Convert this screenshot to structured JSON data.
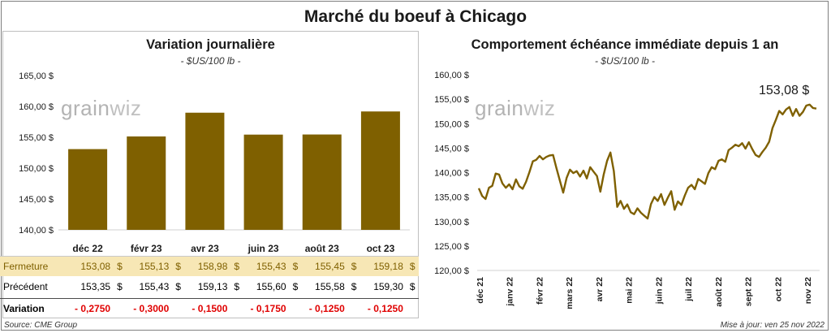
{
  "main_title": "Marché du boeuf à Chicago",
  "left": {
    "title": "Variation  journalière",
    "unit": "- $US/100 lb -",
    "watermark": "grainwiz"
  },
  "right": {
    "title": "Comportement  échéance immédiate depuis 1 an",
    "unit": "- $US/100 lb -",
    "watermark": "grainwiz",
    "last_value_label": "153,08 $"
  },
  "table": {
    "rows": [
      {
        "label": "Fermeture",
        "values": [
          "153,08",
          "155,13",
          "158,98",
          "155,43",
          "155,45",
          "159,18"
        ],
        "currency": "$"
      },
      {
        "label": "Précédent",
        "values": [
          "153,35",
          "155,43",
          "159,13",
          "155,60",
          "155,58",
          "159,30"
        ],
        "currency": "$"
      },
      {
        "label": "Variation",
        "values": [
          "- 0,2750",
          "- 0,3000",
          "- 0,1500",
          "- 0,1750",
          "- 0,1250",
          "- 0,1250"
        ],
        "currency": ""
      }
    ]
  },
  "footer": {
    "source": "Source: CME Group",
    "updated": "Mise à jour: ven 25 nov 2022"
  },
  "colors": {
    "bar": "#7f6000",
    "line": "#7f6000",
    "fermeture_bg": "#f7e7b5",
    "variation_text": "#e00000"
  },
  "chart_data": [
    {
      "type": "bar",
      "title": "Variation  journalière",
      "subtitle": "- $US/100 lb -",
      "categories": [
        "déc 22",
        "févr 23",
        "avr 23",
        "juin 23",
        "août 23",
        "oct 23"
      ],
      "values": [
        153.08,
        155.13,
        158.98,
        155.43,
        155.45,
        159.18
      ],
      "ylim": [
        140,
        165
      ],
      "yticks": [
        140,
        145,
        150,
        155,
        160,
        165
      ],
      "ytick_labels": [
        "140,00 $",
        "145,00 $",
        "150,00 $",
        "155,00 $",
        "160,00 $",
        "165,00 $"
      ],
      "grid": false,
      "legend": "none"
    },
    {
      "type": "line",
      "title": "Comportement  échéance immédiate depuis 1 an",
      "subtitle": "- $US/100 lb -",
      "x_labels": [
        "déc 21",
        "janv 22",
        "févr 22",
        "mars 22",
        "avr 22",
        "mai 22",
        "juin 22",
        "juil 22",
        "août 22",
        "sept 22",
        "oct 22",
        "nov 22"
      ],
      "ylim": [
        120,
        160
      ],
      "yticks": [
        120,
        125,
        130,
        135,
        140,
        145,
        150,
        155,
        160
      ],
      "ytick_labels": [
        "120,00 $",
        "125,00 $",
        "130,00 $",
        "135,00 $",
        "140,00 $",
        "145,00 $",
        "150,00 $",
        "155,00 $",
        "160,00 $"
      ],
      "y": [
        136.8,
        135.2,
        134.6,
        136.9,
        137.3,
        139.8,
        139.6,
        137.8,
        136.9,
        137.6,
        136.6,
        138.6,
        137.2,
        136.7,
        138.1,
        140.1,
        142.3,
        142.6,
        143.4,
        142.7,
        143.2,
        143.5,
        143.6,
        140.9,
        138.4,
        135.9,
        138.9,
        140.6,
        139.9,
        140.3,
        139.2,
        140.4,
        138.8,
        141.1,
        140.2,
        139.3,
        136.1,
        139.6,
        142.4,
        144.1,
        140.3,
        133.0,
        134.2,
        132.6,
        133.5,
        131.9,
        131.5,
        132.7,
        131.8,
        131.2,
        130.6,
        133.6,
        135.0,
        134.2,
        135.6,
        133.4,
        134.9,
        136.2,
        132.4,
        134.1,
        133.4,
        135.3,
        136.9,
        137.5,
        136.6,
        138.7,
        138.2,
        137.7,
        139.9,
        141.1,
        140.7,
        142.4,
        142.7,
        142.2,
        144.6,
        145.1,
        145.7,
        145.4,
        146.0,
        144.9,
        146.2,
        144.8,
        143.6,
        143.2,
        144.2,
        145.1,
        146.3,
        149.1,
        150.8,
        152.6,
        151.9,
        152.9,
        153.4,
        151.6,
        153.0,
        151.6,
        152.4,
        153.7,
        153.9,
        153.2,
        153.08
      ],
      "last_value": 153.08,
      "grid": false,
      "legend": "none"
    }
  ]
}
